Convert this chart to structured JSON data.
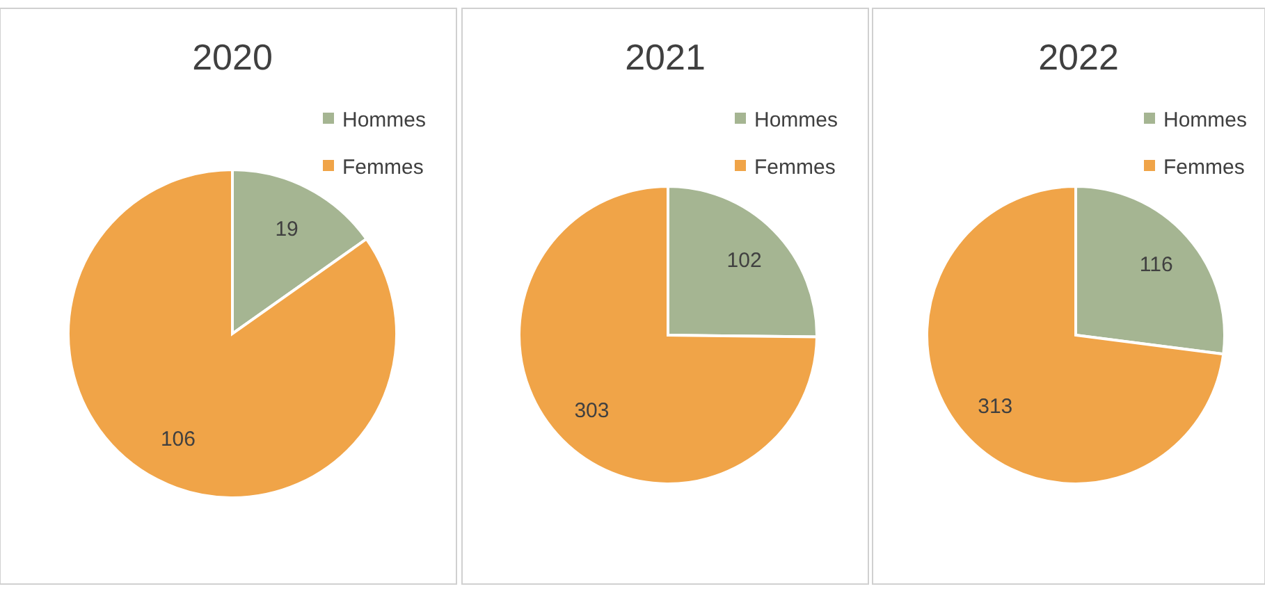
{
  "chart_data": [
    {
      "type": "pie",
      "title": "2020",
      "categories": [
        "Hommes",
        "Femmes"
      ],
      "values": [
        19,
        106
      ],
      "colors": [
        "#a5b592",
        "#f0a448"
      ],
      "data_labels": true,
      "legend": "top right"
    },
    {
      "type": "pie",
      "title": "2021",
      "categories": [
        "Hommes",
        "Femmes"
      ],
      "values": [
        102,
        303
      ],
      "colors": [
        "#a5b592",
        "#f0a448"
      ],
      "data_labels": true,
      "legend": "top right"
    },
    {
      "type": "pie",
      "title": "2022",
      "categories": [
        "Hommes",
        "Femmes"
      ],
      "values": [
        116,
        313
      ],
      "colors": [
        "#a5b592",
        "#f0a448"
      ],
      "data_labels": true,
      "legend": "top right"
    }
  ]
}
